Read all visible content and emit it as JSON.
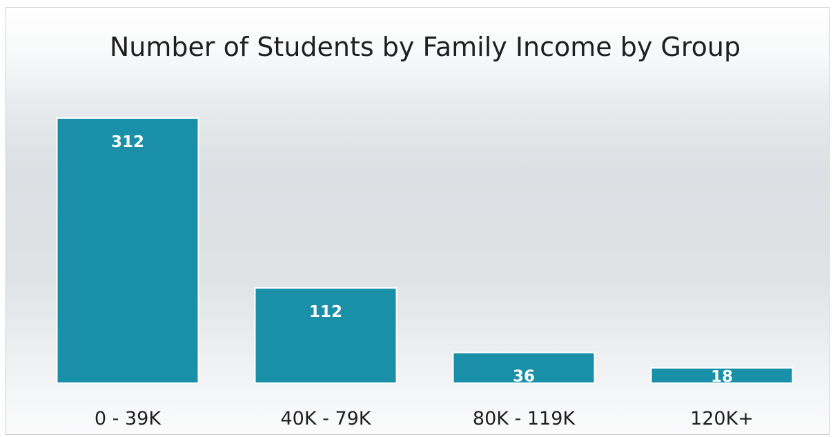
{
  "chart_data": {
    "type": "bar",
    "title": "Number of Students by Family Income by Group",
    "categories": [
      "0 - 39K",
      "40K - 79K",
      "80K - 119K",
      "120K+"
    ],
    "values": [
      312,
      112,
      36,
      18
    ],
    "data_labels": [
      "312",
      "112",
      "36",
      "18"
    ],
    "xlabel": "",
    "ylabel": "",
    "ylim": [
      0,
      312
    ],
    "grid": false,
    "legend": "none",
    "bar_color": "#1a8fa8",
    "bar_border_color": "#ffffff"
  }
}
